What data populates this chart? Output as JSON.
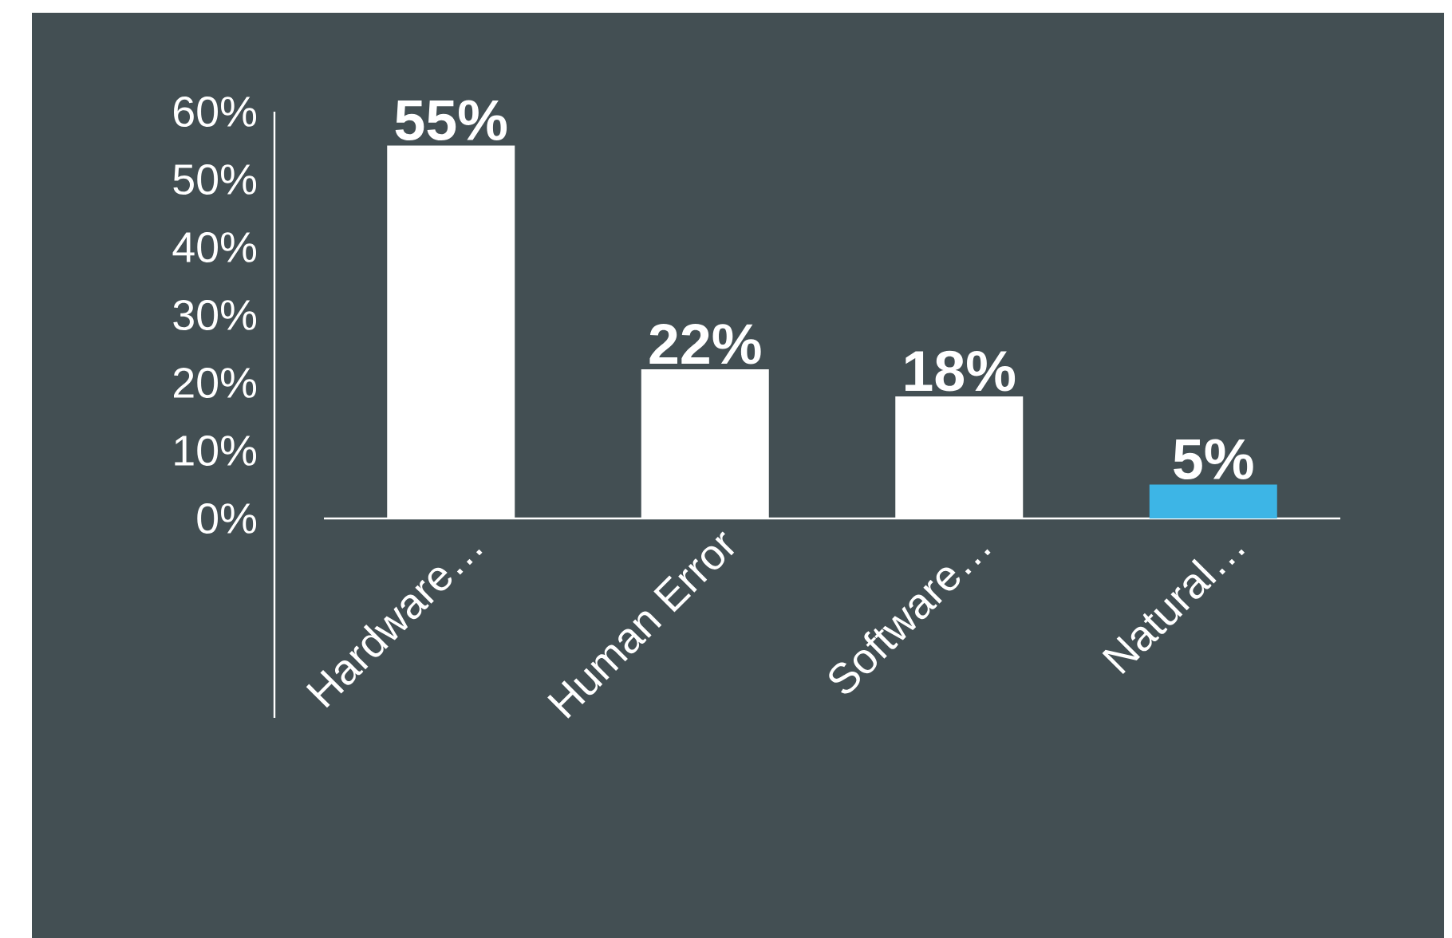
{
  "chart_data": {
    "type": "bar",
    "categories": [
      "Hardware…",
      "Human Error",
      "Software…",
      "Natural…"
    ],
    "values": [
      55,
      22,
      18,
      5
    ],
    "colors": [
      "#ffffff",
      "#ffffff",
      "#ffffff",
      "#3db5e6"
    ],
    "value_labels": [
      "55%",
      "22%",
      "18%",
      "5%"
    ],
    "ylim": [
      0,
      60
    ],
    "yticks": [
      {
        "value": 0,
        "label": "0%"
      },
      {
        "value": 10,
        "label": "10%"
      },
      {
        "value": 20,
        "label": "20%"
      },
      {
        "value": 30,
        "label": "30%"
      },
      {
        "value": 40,
        "label": "40%"
      },
      {
        "value": 50,
        "label": "50%"
      },
      {
        "value": 60,
        "label": "60%"
      }
    ],
    "grid": false
  }
}
